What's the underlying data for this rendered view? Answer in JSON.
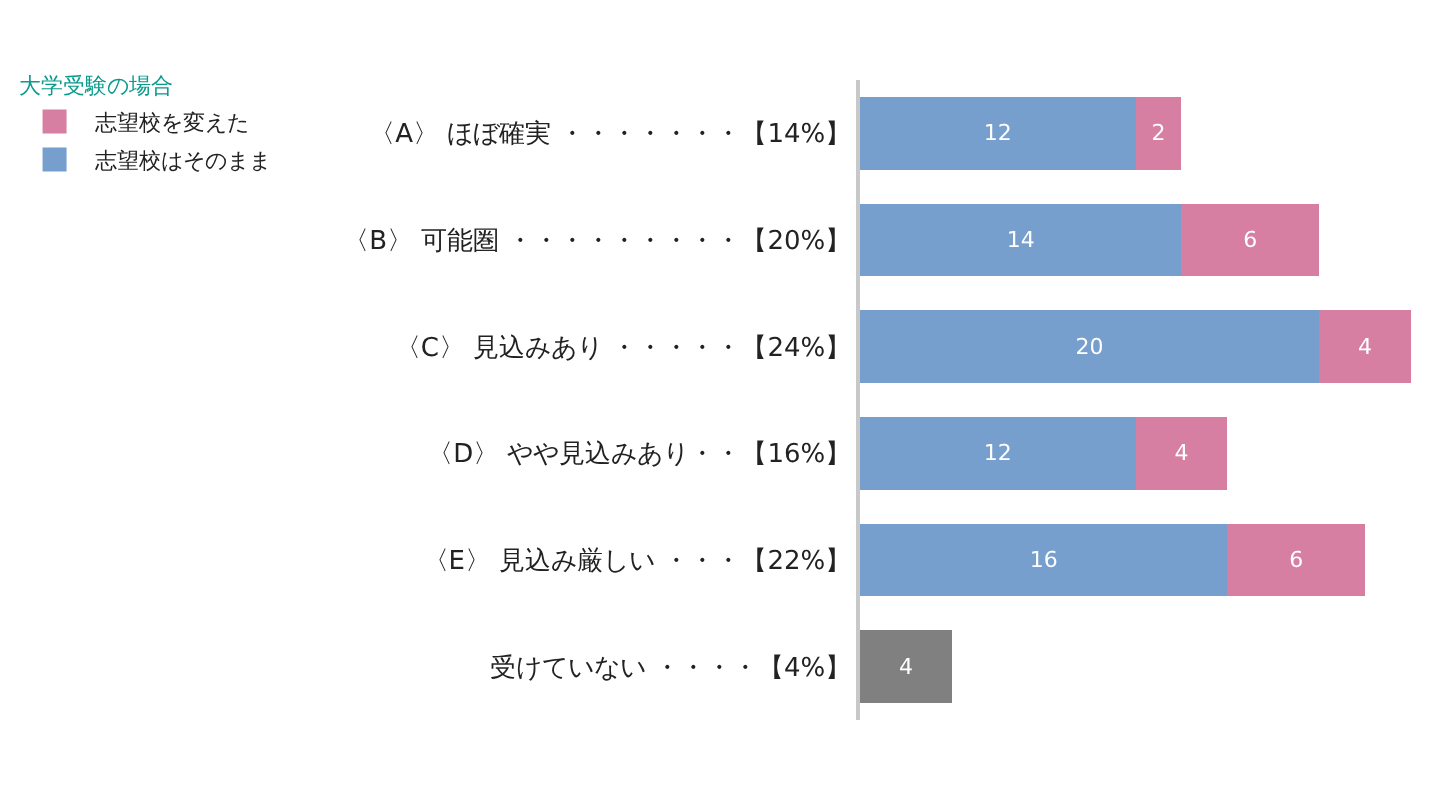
{
  "chart_data": {
    "type": "bar",
    "orientation": "horizontal",
    "stacked": true,
    "legend_title": "大学受験の場合",
    "legend": "top left",
    "data_labels": true,
    "tick_labels": "y",
    "categories": [
      "〈A〉 ほぼ確実 ・・・・・・・【14%】",
      "〈B〉 可能圏 ・・・・・・・・・【20%】",
      "〈C〉 見込みあり ・・・・・【24%】",
      "〈D〉 やや見込みあり・・【16%】",
      "〈E〉 見込み厳しい ・・・【22%】",
      "受けていない ・・・・【4%】"
    ],
    "series": [
      {
        "name": "志望校はそのまま",
        "color": "#769fcd",
        "values": [
          12,
          14,
          20,
          12,
          16,
          null
        ]
      },
      {
        "name": "志望校を変えた",
        "color": "#d67fa3",
        "values": [
          2,
          6,
          4,
          4,
          6,
          null
        ]
      },
      {
        "color": "#808080",
        "values": [
          null,
          null,
          null,
          null,
          null,
          4
        ]
      }
    ]
  }
}
